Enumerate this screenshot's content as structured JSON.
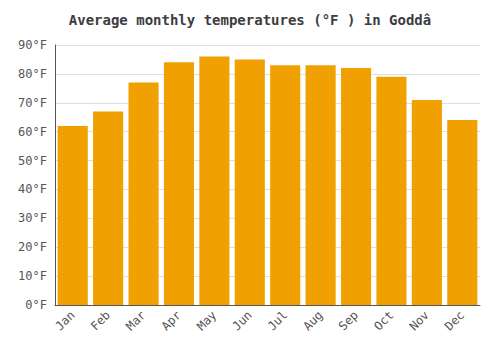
{
  "chart_data": {
    "type": "bar",
    "title": "Average monthly temperatures (°F ) in Goddâ",
    "categories": [
      "Jan",
      "Feb",
      "Mar",
      "Apr",
      "May",
      "Jun",
      "Jul",
      "Aug",
      "Sep",
      "Oct",
      "Nov",
      "Dec"
    ],
    "values": [
      62,
      67,
      77,
      84,
      86,
      85,
      83,
      83,
      82,
      79,
      71,
      64
    ],
    "color": "#F0A000",
    "ylim": [
      0,
      90
    ],
    "yticks": [
      {
        "value": 0,
        "label": "0°F"
      },
      {
        "value": 10,
        "label": "10°F"
      },
      {
        "value": 20,
        "label": "20°F"
      },
      {
        "value": 30,
        "label": "30°F"
      },
      {
        "value": 40,
        "label": "40°F"
      },
      {
        "value": 50,
        "label": "50°F"
      },
      {
        "value": 60,
        "label": "60°F"
      },
      {
        "value": 70,
        "label": "70°F"
      },
      {
        "value": 80,
        "label": "80°F"
      },
      {
        "value": 90,
        "label": "90°F"
      }
    ],
    "grid": true
  }
}
